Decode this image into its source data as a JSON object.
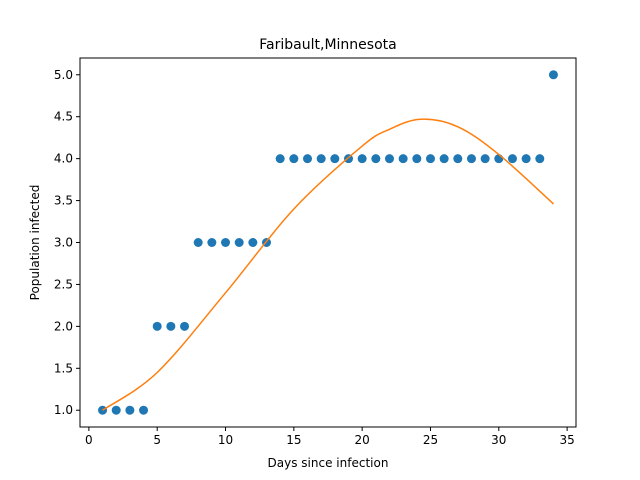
{
  "chart_data": {
    "type": "scatter",
    "title": "Faribault,Minnesota",
    "xlabel": "Days since infection",
    "ylabel": "Population infected",
    "xlim": [
      -0.65,
      35.65
    ],
    "ylim": [
      0.8,
      5.2
    ],
    "xticks": [
      0,
      5,
      10,
      15,
      20,
      25,
      30,
      35
    ],
    "xtick_labels": [
      "0",
      "5",
      "10",
      "15",
      "20",
      "25",
      "30",
      "35"
    ],
    "yticks": [
      1.0,
      1.5,
      2.0,
      2.5,
      3.0,
      3.5,
      4.0,
      4.5,
      5.0
    ],
    "ytick_labels": [
      "1.0",
      "1.5",
      "2.0",
      "2.5",
      "3.0",
      "3.5",
      "4.0",
      "4.5",
      "5.0"
    ],
    "grid": false,
    "series": [
      {
        "kind": "scatter",
        "color": "#1f77b4",
        "x": [
          1,
          2,
          3,
          4,
          5,
          6,
          7,
          8,
          9,
          10,
          11,
          12,
          13,
          14,
          15,
          16,
          17,
          18,
          19,
          20,
          21,
          22,
          23,
          24,
          25,
          26,
          27,
          28,
          29,
          30,
          31,
          32,
          33,
          34
        ],
        "y": [
          1,
          1,
          1,
          1,
          2,
          2,
          2,
          3,
          3,
          3,
          3,
          3,
          3,
          4,
          4,
          4,
          4,
          4,
          4,
          4,
          4,
          4,
          4,
          4,
          4,
          4,
          4,
          4,
          4,
          4,
          4,
          4,
          4,
          5
        ]
      },
      {
        "kind": "line",
        "color": "#ff7f0e",
        "x": [
          1,
          5,
          10,
          15,
          20,
          22,
          24.3,
          27,
          30,
          34
        ],
        "y": [
          1.0,
          1.45,
          2.4,
          3.4,
          4.15,
          4.35,
          4.47,
          4.38,
          4.05,
          3.46
        ]
      }
    ]
  }
}
